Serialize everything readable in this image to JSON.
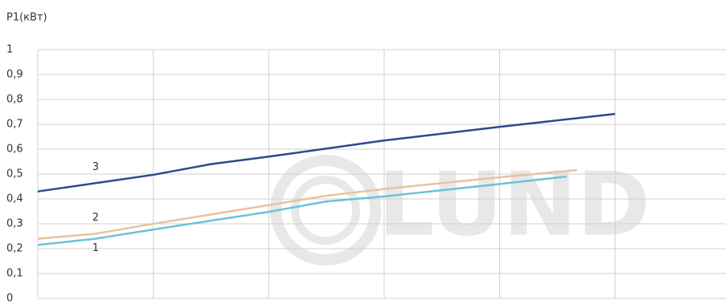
{
  "chart_data": {
    "type": "line",
    "y_label": "P1(кВт)",
    "watermark": "LUND",
    "xlim": [
      0,
      5.96
    ],
    "xticks": [
      0,
      1,
      2,
      3,
      4,
      5
    ],
    "ylim": [
      0,
      1
    ],
    "yticks": [
      0,
      {
        "value": 0.1,
        "label": "0,1"
      },
      {
        "value": 0.2,
        "label": "0,2"
      },
      {
        "value": 0.3,
        "label": "0,3"
      },
      {
        "value": 0.4,
        "label": "0,4"
      },
      {
        "value": 0.5,
        "label": "0,5"
      },
      {
        "value": 0.6,
        "label": "0,6"
      },
      {
        "value": 0.7,
        "label": "0,7"
      },
      {
        "value": 0.8,
        "label": "0,8"
      },
      {
        "value": 0.9,
        "label": "0,9"
      },
      1
    ],
    "grid": true,
    "series": [
      {
        "name": "1",
        "color": "#6bc3d9",
        "x": [
          0,
          0.5,
          1,
          2,
          2.5,
          3,
          4,
          4.58
        ],
        "values": [
          0.215,
          0.24,
          0.277,
          0.348,
          0.39,
          0.41,
          0.46,
          0.49
        ]
      },
      {
        "name": "2",
        "color": "#e6c49f",
        "x": [
          0,
          0.5,
          1,
          2,
          2.5,
          3,
          4,
          4.67
        ],
        "values": [
          0.24,
          0.26,
          0.3,
          0.375,
          0.413,
          0.44,
          0.487,
          0.516
        ]
      },
      {
        "name": "3",
        "color": "#2b4a8b",
        "x": [
          0,
          1,
          1.5,
          2,
          3,
          4,
          5
        ],
        "values": [
          0.43,
          0.497,
          0.54,
          0.57,
          0.635,
          0.69,
          0.742
        ]
      }
    ]
  }
}
